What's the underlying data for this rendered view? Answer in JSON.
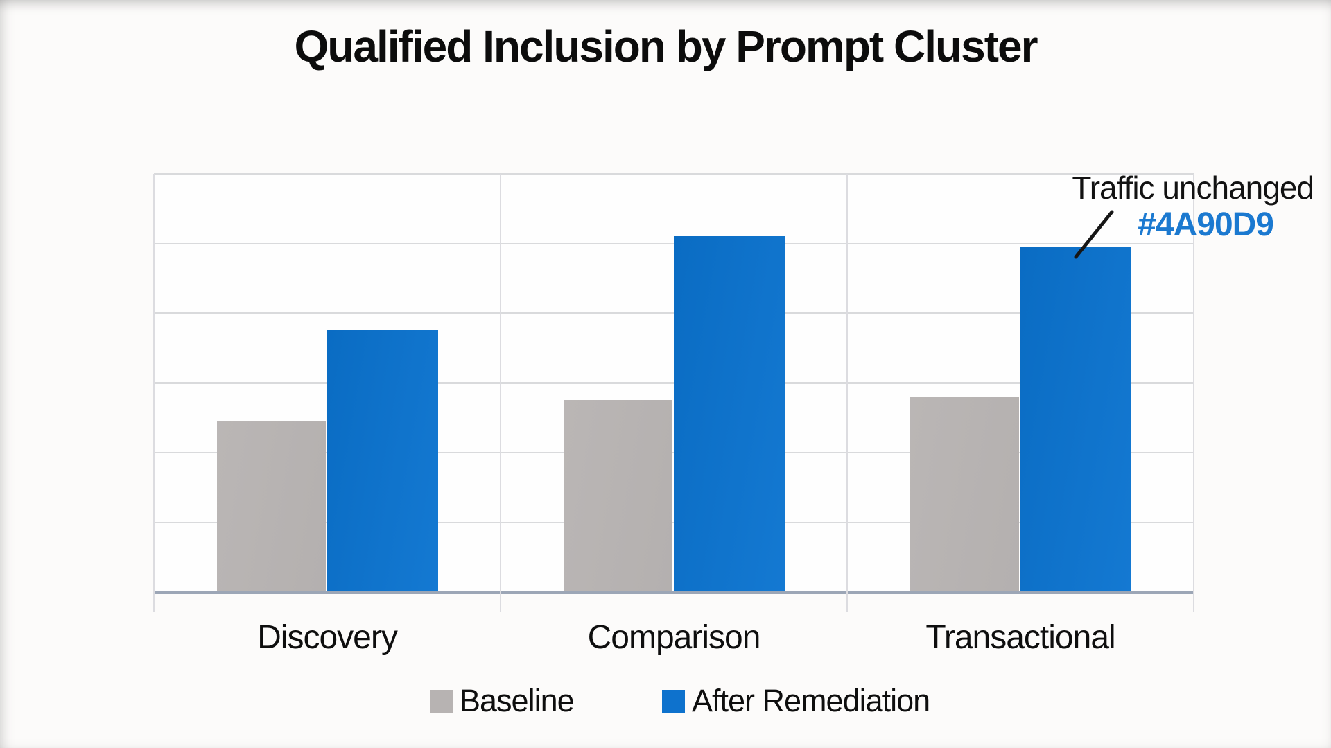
{
  "page": {
    "title": "Qualified Inclusion by Prompt Cluster"
  },
  "annotation": {
    "label": "Traffic unchanged",
    "hex_label": "#4A90D9",
    "hex_label_color": "#1b79d0",
    "points_to": "After Remediation bar in Transactional group"
  },
  "legend": {
    "items": [
      {
        "label": "Baseline",
        "color": "#b7b3b2"
      },
      {
        "label": "After Remediation",
        "color": "#0e72cd"
      }
    ]
  },
  "colors": {
    "baseline_bar": "#b7b3b2",
    "after_bar_dark": "#0a6cc3",
    "after_bar_light": "#1479d2",
    "gridline": "#d9dadc",
    "axis_line": "#9ca6b6",
    "text": "#111111",
    "background": "#fcfbfa"
  },
  "chart_data": {
    "type": "bar",
    "title": "Qualified Inclusion by Prompt Cluster",
    "categories": [
      "Discovery",
      "Comparison",
      "Transactional"
    ],
    "series": [
      {
        "name": "Baseline",
        "color": "#b7b3b2",
        "values": [
          24.5,
          27.5,
          28
        ]
      },
      {
        "name": "After Remediation",
        "color": "#0d70c8",
        "values": [
          37.5,
          51,
          49.5
        ]
      }
    ],
    "xlabel": "",
    "ylabel": "",
    "ylim": [
      0,
      60
    ],
    "grid_step": 10,
    "y_tick_labels": "none",
    "grid": true,
    "legend_position": "bottom",
    "annotation_text": [
      "Traffic unchanged",
      "#4A90D9"
    ]
  }
}
